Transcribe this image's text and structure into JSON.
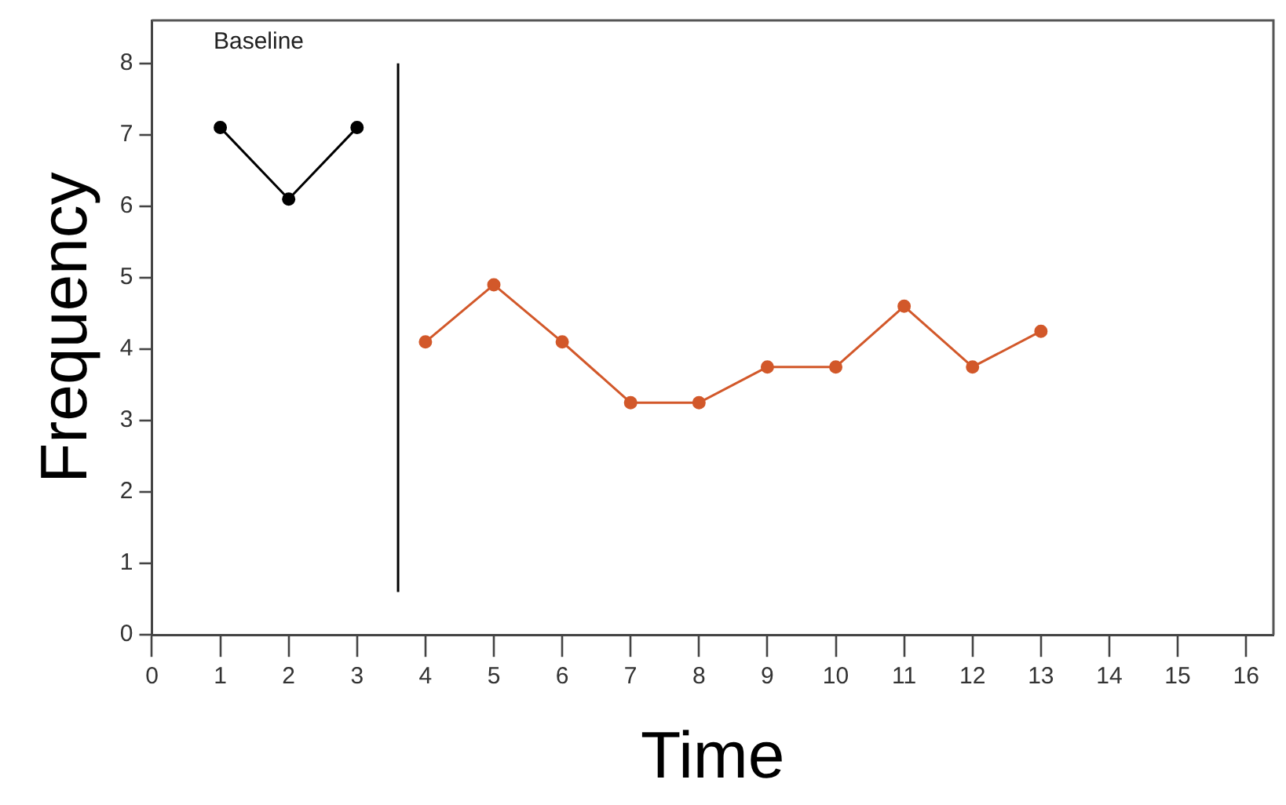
{
  "chart_data": {
    "type": "line",
    "xlabel": "Time",
    "ylabel": "Frequency",
    "xlim": [
      0,
      16.4
    ],
    "xticks": [
      0,
      1,
      2,
      3,
      4,
      5,
      6,
      7,
      8,
      9,
      10,
      11,
      12,
      13,
      14,
      15,
      16
    ],
    "ylim": [
      0,
      8.6
    ],
    "yticks": [
      0,
      1,
      2,
      3,
      4,
      5,
      6,
      7,
      8
    ],
    "series": [
      {
        "color": "#000000",
        "x": [
          1,
          2,
          3
        ],
        "values": [
          7.1,
          6.1,
          7.1
        ]
      },
      {
        "color": "#d2582a",
        "x": [
          4,
          5,
          6,
          7,
          8,
          9,
          10,
          11,
          12,
          13
        ],
        "values": [
          4.1,
          4.9,
          4.1,
          3.25,
          3.25,
          3.75,
          3.75,
          4.6,
          3.75,
          4.25
        ]
      }
    ],
    "ref_lines": [
      {
        "axis": "x",
        "value": 3.6,
        "color": "#000000"
      }
    ],
    "annotations": [
      "Baseline"
    ],
    "grid": false,
    "legend": false,
    "marker": "circle",
    "line_style": "solid"
  }
}
